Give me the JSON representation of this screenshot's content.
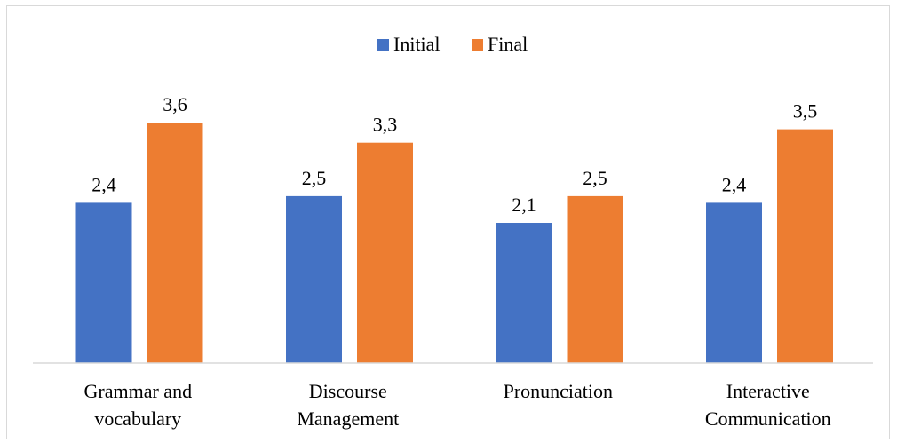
{
  "chart_data": {
    "type": "bar",
    "categories": [
      [
        "Grammar and",
        "vocabulary"
      ],
      [
        "Discourse",
        "Management"
      ],
      [
        "Pronunciation"
      ],
      [
        "Interactive",
        "Communication"
      ]
    ],
    "series": [
      {
        "name": "Initial",
        "values": [
          2.4,
          2.5,
          2.1,
          2.4
        ],
        "labels": [
          "2,4",
          "2,5",
          "2,1",
          "2,4"
        ],
        "color": "#4472c4"
      },
      {
        "name": "Final",
        "values": [
          3.6,
          3.3,
          2.5,
          3.5
        ],
        "labels": [
          "3,6",
          "3,3",
          "2,5",
          "3,5"
        ],
        "color": "#ed7d31"
      }
    ],
    "ylim": [
      0,
      4.0
    ],
    "grid": false,
    "legend": "top-center",
    "axis_color": "#d9d9d9"
  }
}
